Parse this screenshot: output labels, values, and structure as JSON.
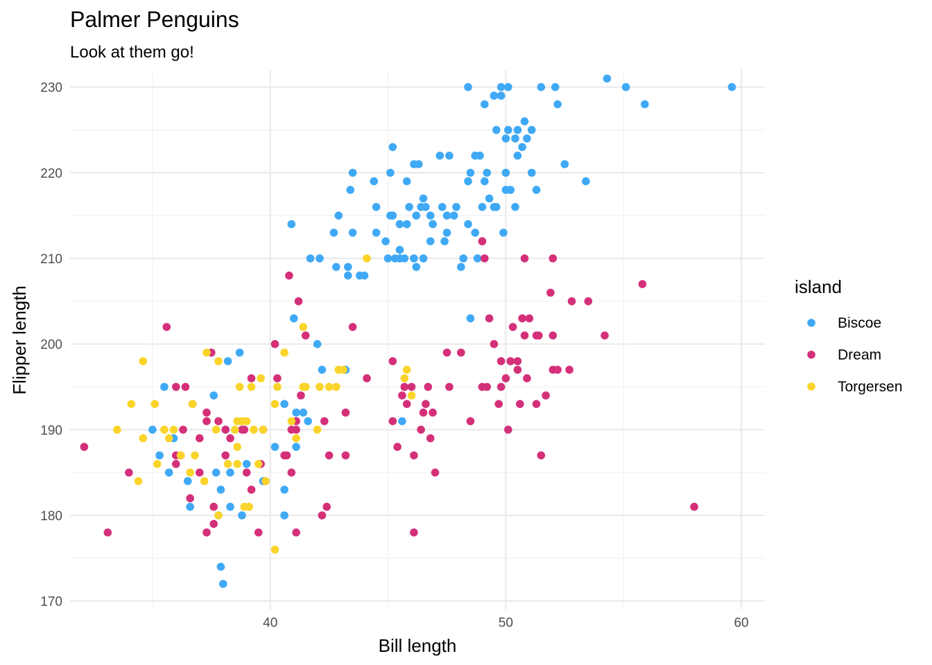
{
  "chart_data": {
    "type": "scatter",
    "title": "Palmer Penguins",
    "subtitle": "Look at them go!",
    "xlabel": "Bill length",
    "ylabel": "Flipper length",
    "xlim": [
      31.5,
      61
    ],
    "ylim": [
      169,
      232
    ],
    "x_ticks": [
      40,
      50,
      60
    ],
    "y_ticks": [
      170,
      180,
      190,
      200,
      210,
      220,
      230
    ],
    "grid": true,
    "legend_title": "island",
    "legend_position": "right",
    "series": [
      {
        "name": "Biscoe",
        "color": "#3fa9f5",
        "points": [
          [
            35.0,
            190
          ],
          [
            35.3,
            187
          ],
          [
            35.5,
            195
          ],
          [
            35.7,
            185
          ],
          [
            35.9,
            189
          ],
          [
            36.5,
            184
          ],
          [
            36.6,
            181
          ],
          [
            37.6,
            194
          ],
          [
            37.7,
            185
          ],
          [
            37.9,
            183
          ],
          [
            37.8,
            180
          ],
          [
            37.9,
            174
          ],
          [
            38.0,
            172
          ],
          [
            38.2,
            198
          ],
          [
            38.3,
            181
          ],
          [
            38.1,
            190
          ],
          [
            38.3,
            185
          ],
          [
            38.8,
            180
          ],
          [
            38.7,
            199
          ],
          [
            39.0,
            186
          ],
          [
            39.7,
            184
          ],
          [
            40.2,
            188
          ],
          [
            40.6,
            193
          ],
          [
            40.6,
            183
          ],
          [
            40.6,
            180
          ],
          [
            41.0,
            203
          ],
          [
            41.1,
            192
          ],
          [
            41.1,
            188
          ],
          [
            41.4,
            192
          ],
          [
            41.6,
            191
          ],
          [
            42.0,
            200
          ],
          [
            42.2,
            197
          ],
          [
            43.2,
            197
          ],
          [
            40.9,
            214
          ],
          [
            41.7,
            210
          ],
          [
            42.1,
            210
          ],
          [
            42.7,
            213
          ],
          [
            42.8,
            209
          ],
          [
            42.9,
            215
          ],
          [
            43.3,
            209
          ],
          [
            43.3,
            208
          ],
          [
            43.4,
            218
          ],
          [
            43.5,
            220
          ],
          [
            43.5,
            213
          ],
          [
            43.8,
            208
          ],
          [
            44.0,
            208
          ],
          [
            44.4,
            219
          ],
          [
            44.5,
            216
          ],
          [
            44.5,
            213
          ],
          [
            44.9,
            212
          ],
          [
            45.0,
            210
          ],
          [
            45.1,
            215
          ],
          [
            45.1,
            220
          ],
          [
            45.2,
            223
          ],
          [
            45.2,
            215
          ],
          [
            45.3,
            210
          ],
          [
            45.5,
            211
          ],
          [
            45.5,
            214
          ],
          [
            45.7,
            210
          ],
          [
            45.8,
            214
          ],
          [
            45.8,
            219
          ],
          [
            45.9,
            216
          ],
          [
            46.1,
            210
          ],
          [
            46.1,
            221
          ],
          [
            46.2,
            209
          ],
          [
            46.2,
            215
          ],
          [
            46.3,
            221
          ],
          [
            46.4,
            216
          ],
          [
            46.5,
            217
          ],
          [
            46.5,
            210
          ],
          [
            46.6,
            216
          ],
          [
            46.8,
            215
          ],
          [
            46.8,
            212
          ],
          [
            46.9,
            214
          ],
          [
            47.2,
            222
          ],
          [
            47.3,
            216
          ],
          [
            47.4,
            212
          ],
          [
            47.5,
            215
          ],
          [
            47.5,
            213
          ],
          [
            47.6,
            222
          ],
          [
            47.8,
            215
          ],
          [
            47.9,
            216
          ],
          [
            48.1,
            209
          ],
          [
            48.2,
            210
          ],
          [
            48.4,
            219
          ],
          [
            48.4,
            214
          ],
          [
            48.5,
            220
          ],
          [
            48.5,
            203
          ],
          [
            48.7,
            213
          ],
          [
            48.7,
            222
          ],
          [
            48.8,
            210
          ],
          [
            48.9,
            222
          ],
          [
            49.0,
            216
          ],
          [
            49.1,
            219
          ],
          [
            49.2,
            220
          ],
          [
            49.1,
            228
          ],
          [
            49.3,
            217
          ],
          [
            49.5,
            216
          ],
          [
            49.5,
            229
          ],
          [
            49.6,
            216
          ],
          [
            49.6,
            225
          ],
          [
            49.8,
            229
          ],
          [
            49.8,
            230
          ],
          [
            49.9,
            213
          ],
          [
            50.0,
            224
          ],
          [
            50.0,
            220
          ],
          [
            50.0,
            218
          ],
          [
            50.1,
            225
          ],
          [
            50.2,
            218
          ],
          [
            50.1,
            230
          ],
          [
            50.4,
            224
          ],
          [
            50.4,
            216
          ],
          [
            50.5,
            222
          ],
          [
            50.5,
            225
          ],
          [
            50.7,
            223
          ],
          [
            50.8,
            226
          ],
          [
            50.9,
            224
          ],
          [
            51.1,
            225
          ],
          [
            51.1,
            220
          ],
          [
            51.3,
            218
          ],
          [
            51.5,
            230
          ],
          [
            52.1,
            230
          ],
          [
            52.2,
            228
          ],
          [
            52.5,
            221
          ],
          [
            53.4,
            219
          ],
          [
            54.3,
            231
          ],
          [
            55.1,
            230
          ],
          [
            55.9,
            228
          ],
          [
            59.6,
            230
          ],
          [
            48.4,
            230
          ],
          [
            45.6,
            191
          ],
          [
            45.5,
            210
          ]
        ]
      },
      {
        "name": "Dream",
        "color": "#d4307a",
        "points": [
          [
            32.1,
            188
          ],
          [
            33.1,
            178
          ],
          [
            34.0,
            185
          ],
          [
            35.6,
            202
          ],
          [
            36.0,
            195
          ],
          [
            36.0,
            187
          ],
          [
            36.0,
            186
          ],
          [
            36.2,
            187
          ],
          [
            36.3,
            190
          ],
          [
            36.4,
            195
          ],
          [
            36.6,
            182
          ],
          [
            36.7,
            193
          ],
          [
            37.0,
            189
          ],
          [
            37.0,
            185
          ],
          [
            37.3,
            178
          ],
          [
            37.3,
            192
          ],
          [
            37.3,
            191
          ],
          [
            37.5,
            199
          ],
          [
            37.6,
            181
          ],
          [
            37.6,
            179
          ],
          [
            37.8,
            191
          ],
          [
            38.1,
            187
          ],
          [
            38.1,
            190
          ],
          [
            38.3,
            189
          ],
          [
            38.8,
            190
          ],
          [
            38.9,
            190
          ],
          [
            39.0,
            185
          ],
          [
            39.2,
            196
          ],
          [
            39.5,
            178
          ],
          [
            39.6,
            186
          ],
          [
            39.7,
            190
          ],
          [
            39.8,
            184
          ],
          [
            39.2,
            183
          ],
          [
            40.2,
            200
          ],
          [
            40.3,
            196
          ],
          [
            40.6,
            187
          ],
          [
            40.7,
            187
          ],
          [
            40.8,
            208
          ],
          [
            40.9,
            190
          ],
          [
            41.1,
            190
          ],
          [
            40.9,
            185
          ],
          [
            41.1,
            191
          ],
          [
            41.1,
            178
          ],
          [
            41.3,
            194
          ],
          [
            41.5,
            201
          ],
          [
            41.2,
            205
          ],
          [
            42.2,
            180
          ],
          [
            42.3,
            191
          ],
          [
            42.4,
            181
          ],
          [
            42.5,
            187
          ],
          [
            43.2,
            187
          ],
          [
            43.2,
            192
          ],
          [
            43.5,
            202
          ],
          [
            44.1,
            196
          ],
          [
            45.2,
            198
          ],
          [
            45.2,
            191
          ],
          [
            45.4,
            188
          ],
          [
            45.6,
            194
          ],
          [
            45.7,
            195
          ],
          [
            45.8,
            193
          ],
          [
            46.0,
            195
          ],
          [
            46.1,
            178
          ],
          [
            46.1,
            187
          ],
          [
            46.4,
            190
          ],
          [
            46.5,
            192
          ],
          [
            46.6,
            193
          ],
          [
            46.7,
            195
          ],
          [
            46.8,
            189
          ],
          [
            46.9,
            192
          ],
          [
            47.0,
            185
          ],
          [
            47.5,
            199
          ],
          [
            47.6,
            195
          ],
          [
            48.1,
            199
          ],
          [
            48.5,
            191
          ],
          [
            49.0,
            195
          ],
          [
            49.0,
            212
          ],
          [
            49.1,
            210
          ],
          [
            49.2,
            195
          ],
          [
            49.3,
            203
          ],
          [
            49.5,
            200
          ],
          [
            49.7,
            193
          ],
          [
            49.8,
            195
          ],
          [
            49.8,
            198
          ],
          [
            50.0,
            196
          ],
          [
            50.1,
            190
          ],
          [
            50.2,
            198
          ],
          [
            50.3,
            202
          ],
          [
            50.5,
            198
          ],
          [
            50.5,
            197
          ],
          [
            50.6,
            193
          ],
          [
            50.7,
            203
          ],
          [
            50.8,
            210
          ],
          [
            50.8,
            201
          ],
          [
            50.9,
            196
          ],
          [
            51.0,
            203
          ],
          [
            51.3,
            201
          ],
          [
            51.3,
            193
          ],
          [
            51.4,
            201
          ],
          [
            51.5,
            187
          ],
          [
            51.7,
            194
          ],
          [
            51.9,
            206
          ],
          [
            52.0,
            201
          ],
          [
            52.0,
            210
          ],
          [
            52.0,
            197
          ],
          [
            52.2,
            197
          ],
          [
            52.7,
            197
          ],
          [
            52.8,
            205
          ],
          [
            53.5,
            205
          ],
          [
            54.2,
            201
          ],
          [
            55.8,
            207
          ],
          [
            58.0,
            181
          ],
          [
            49.0,
            212
          ]
        ]
      },
      {
        "name": "Torgersen",
        "color": "#fad42a",
        "points": [
          [
            33.5,
            190
          ],
          [
            34.1,
            193
          ],
          [
            34.4,
            184
          ],
          [
            34.6,
            198
          ],
          [
            34.6,
            189
          ],
          [
            35.1,
            193
          ],
          [
            35.2,
            186
          ],
          [
            35.5,
            190
          ],
          [
            35.7,
            189
          ],
          [
            35.9,
            190
          ],
          [
            36.2,
            187
          ],
          [
            36.6,
            185
          ],
          [
            36.7,
            193
          ],
          [
            36.8,
            187
          ],
          [
            37.2,
            184
          ],
          [
            37.3,
            199
          ],
          [
            37.7,
            190
          ],
          [
            37.8,
            198
          ],
          [
            37.8,
            180
          ],
          [
            38.5,
            190
          ],
          [
            38.6,
            191
          ],
          [
            38.6,
            186
          ],
          [
            38.6,
            188
          ],
          [
            38.7,
            195
          ],
          [
            38.8,
            191
          ],
          [
            38.9,
            181
          ],
          [
            39.0,
            191
          ],
          [
            39.1,
            181
          ],
          [
            39.2,
            195
          ],
          [
            39.3,
            190
          ],
          [
            39.5,
            186
          ],
          [
            39.6,
            196
          ],
          [
            39.7,
            190
          ],
          [
            39.8,
            184
          ],
          [
            40.2,
            176
          ],
          [
            40.3,
            195
          ],
          [
            40.6,
            199
          ],
          [
            40.9,
            191
          ],
          [
            41.1,
            189
          ],
          [
            41.4,
            202
          ],
          [
            41.4,
            195
          ],
          [
            41.5,
            195
          ],
          [
            42.0,
            190
          ],
          [
            42.1,
            195
          ],
          [
            42.5,
            195
          ],
          [
            42.8,
            195
          ],
          [
            42.9,
            197
          ],
          [
            43.1,
            197
          ],
          [
            44.1,
            210
          ],
          [
            45.8,
            197
          ],
          [
            46.0,
            194
          ],
          [
            45.7,
            196
          ],
          [
            40.2,
            193
          ],
          [
            38.2,
            186
          ]
        ]
      }
    ]
  }
}
